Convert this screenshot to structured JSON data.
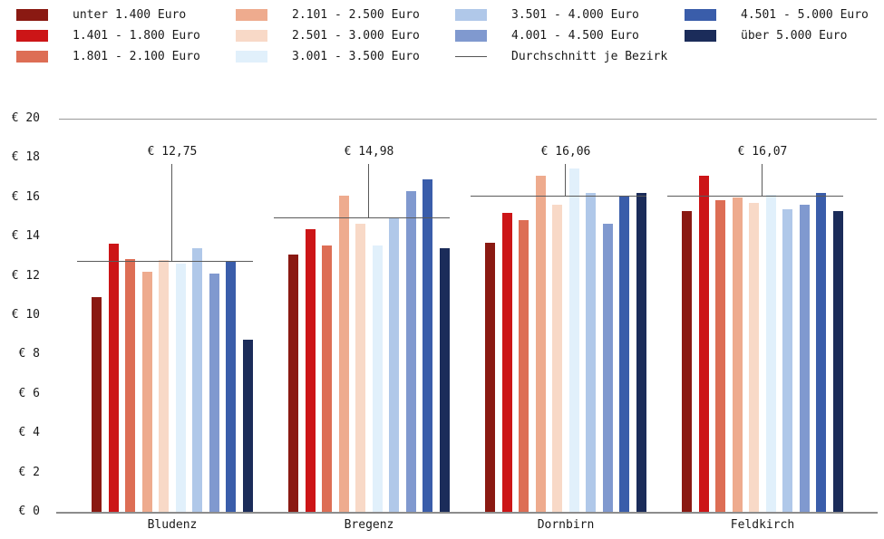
{
  "legend": {
    "items": [
      {
        "label": "unter 1.400 Euro",
        "color": "#8a1912",
        "type": "swatch"
      },
      {
        "label": "1.401 - 1.800 Euro",
        "color": "#cc1517",
        "type": "swatch"
      },
      {
        "label": "1.801 - 2.100 Euro",
        "color": "#dd6e55",
        "type": "swatch"
      },
      {
        "label": "2.101 - 2.500 Euro",
        "color": "#eeab8e",
        "type": "swatch"
      },
      {
        "label": "2.501 - 3.000 Euro",
        "color": "#f8d9c7",
        "type": "swatch"
      },
      {
        "label": "3.001 - 3.500 Euro",
        "color": "#e1f0fb",
        "type": "swatch"
      },
      {
        "label": "3.501 - 4.000 Euro",
        "color": "#b0c8e9",
        "type": "swatch"
      },
      {
        "label": "4.001 - 4.500 Euro",
        "color": "#8099cf",
        "type": "swatch"
      },
      {
        "label": "4.501 - 5.000 Euro",
        "color": "#3a5daa",
        "type": "swatch"
      },
      {
        "label": "über 5.000 Euro",
        "color": "#1b2c5a",
        "type": "swatch"
      },
      {
        "label": "Durchschnitt je Bezirk",
        "color": "#555555",
        "type": "line"
      }
    ]
  },
  "chart_data": {
    "type": "bar",
    "title": "",
    "xlabel": "",
    "ylabel": "",
    "ylim": [
      0,
      20
    ],
    "grid": "top-and-bottom-rule-only",
    "legend_position": "top",
    "categories": [
      "Bludenz",
      "Bregenz",
      "Dornbirn",
      "Feldkirch"
    ],
    "series": [
      {
        "name": "unter 1.400 Euro",
        "color": "#8a1912",
        "values": [
          10.9,
          13.1,
          13.7,
          15.3
        ]
      },
      {
        "name": "1.401 - 1.800 Euro",
        "color": "#cc1517",
        "values": [
          13.65,
          14.4,
          15.2,
          17.1
        ]
      },
      {
        "name": "1.801 - 2.100 Euro",
        "color": "#dd6e55",
        "values": [
          12.85,
          13.55,
          14.85,
          15.85
        ]
      },
      {
        "name": "2.101 - 2.500 Euro",
        "color": "#eeab8e",
        "values": [
          12.2,
          16.1,
          17.1,
          16.0
        ]
      },
      {
        "name": "2.501 - 3.000 Euro",
        "color": "#f8d9c7",
        "values": [
          12.8,
          14.65,
          15.6,
          15.7
        ]
      },
      {
        "name": "3.001 - 3.500 Euro",
        "color": "#e1f0fb",
        "values": [
          12.65,
          13.55,
          17.45,
          16.15
        ]
      },
      {
        "name": "3.501 - 4.000 Euro",
        "color": "#b0c8e9",
        "values": [
          13.4,
          15.0,
          16.2,
          15.4
        ]
      },
      {
        "name": "4.001 - 4.500 Euro",
        "color": "#8099cf",
        "values": [
          12.1,
          16.3,
          14.65,
          15.6
        ]
      },
      {
        "name": "4.501 - 5.000 Euro",
        "color": "#3a5daa",
        "values": [
          12.75,
          16.9,
          16.1,
          16.2
        ]
      },
      {
        "name": "über 5.000 Euro",
        "color": "#1b2c5a",
        "values": [
          8.75,
          13.4,
          16.2,
          15.3
        ]
      }
    ],
    "averages": [
      {
        "category": "Bludenz",
        "value": 12.75,
        "label": "€ 12,75"
      },
      {
        "category": "Bregenz",
        "value": 14.98,
        "label": "€ 14,98"
      },
      {
        "category": "Dornbirn",
        "value": 16.06,
        "label": "€ 16,06"
      },
      {
        "category": "Feldkirch",
        "value": 16.07,
        "label": "€ 16,07"
      }
    ],
    "yticks": [
      {
        "value": 0,
        "label": "€ 0"
      },
      {
        "value": 2,
        "label": "€ 2"
      },
      {
        "value": 4,
        "label": "€ 4"
      },
      {
        "value": 6,
        "label": "€ 6"
      },
      {
        "value": 8,
        "label": "€ 8"
      },
      {
        "value": 10,
        "label": "€ 10"
      },
      {
        "value": 12,
        "label": "€ 12"
      },
      {
        "value": 14,
        "label": "€ 14"
      },
      {
        "value": 16,
        "label": "€ 16"
      },
      {
        "value": 18,
        "label": "€ 18"
      },
      {
        "value": 20,
        "label": "€ 20"
      }
    ]
  }
}
